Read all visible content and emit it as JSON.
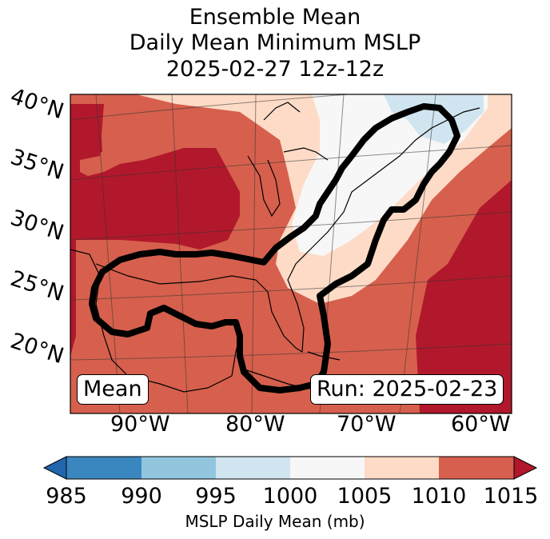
{
  "title": {
    "line1": "Ensemble Mean",
    "line2": "Daily Mean Minimum MSLP",
    "line3": "2025-02-27 12z-12z"
  },
  "map": {
    "lat_labels": [
      "40°N",
      "35°N",
      "30°N",
      "25°N",
      "20°N"
    ],
    "lon_labels": [
      "90°W",
      "80°W",
      "70°W",
      "60°W"
    ],
    "left_box": "Mean",
    "right_box": "Run: 2025-02-23",
    "colors": {
      "band_985_990": "#3a87bf",
      "band_990_995": "#92c5de",
      "band_995_1000": "#d1e5f0",
      "band_1000_1005": "#f7f7f7",
      "band_1005_1010": "#fddbc7",
      "band_1010_1015": "#d6604d",
      "band_ge_1015": "#b2182b",
      "band_le_985": "#2166ac"
    }
  },
  "colorbar": {
    "ticks": [
      "985",
      "990",
      "995",
      "1000",
      "1005",
      "1010",
      "1015"
    ],
    "label": "MSLP Daily Mean (mb)"
  }
}
